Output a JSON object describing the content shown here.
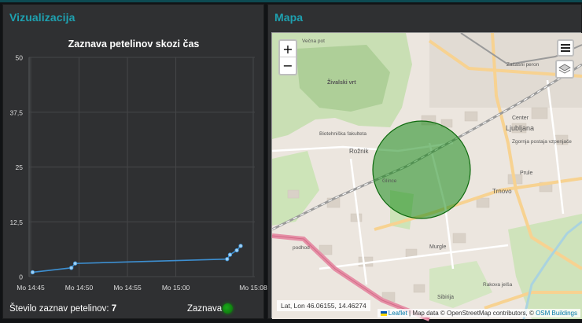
{
  "left_panel": {
    "title": "Vizualizacija",
    "footer_label": "Število zaznav petelinov:",
    "footer_count": "7",
    "indicator_label": "Zaznava",
    "indicator_color": "#1aa91a"
  },
  "right_panel": {
    "title": "Mapa"
  },
  "chart_data": {
    "type": "line",
    "title": "Zaznava petelinov skozi čas",
    "xlabel": "",
    "ylabel": "",
    "ylim": [
      0,
      50
    ],
    "yticks": [
      "0",
      "12,5",
      "25",
      "37,5",
      "50"
    ],
    "xticks": [
      "Mo 14:45",
      "Mo 14:50",
      "Mo 14:55",
      "Mo 15:00",
      "Mo 15:08"
    ],
    "xtick_minutes": [
      0,
      5,
      10,
      15,
      23
    ],
    "grid": true,
    "series": [
      {
        "color": "#3d8fd1",
        "x_minutes": [
          0.2,
          4.2,
          4.6,
          20.3,
          20.6,
          21.3,
          21.7
        ],
        "values": [
          1,
          2,
          3,
          4,
          5,
          6,
          7
        ]
      }
    ]
  },
  "map": {
    "zoom_in": "+",
    "zoom_out": "−",
    "latlon": "Lat, Lon   46.06155, 14.46274",
    "attribution_leaflet": "Leaflet",
    "attribution_text": " | Map data © OpenStreetMap contributors, © ",
    "attribution_osmb": "OSM Buildings",
    "labels": {
      "zivalski": "Živalski vrt",
      "biotehniska": "Biotehniška fakulteta",
      "roznik": "Rožnik",
      "ljubljana": "Ljubljana",
      "center": "Center",
      "trnovo": "Trnovo",
      "murgle": "Murgle",
      "zacasni": "Začasni peron",
      "zgornja": "Zgornja postaja vzpenjače",
      "sibirija": "Sibirija",
      "prule": "Prule",
      "glince": "Glince",
      "rakova": "Rakova jelša",
      "vecna": "Večna pot",
      "podhod": "podhod"
    },
    "circle_color": "#1a8a1a"
  }
}
